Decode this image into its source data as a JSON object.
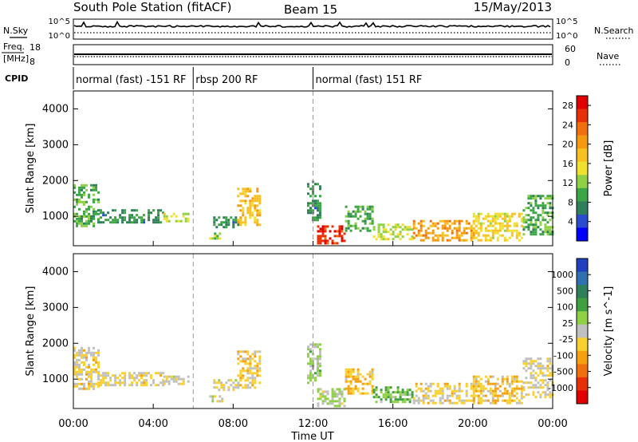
{
  "header": {
    "title": "South Pole Station (fitACF)",
    "beam": "Beam 15",
    "date": "15/May/2013"
  },
  "status_panels": {
    "nsky_label": "N.Sky",
    "nsearch_label": "N.Search",
    "noise_ticks_left": [
      "10^5",
      "10^0"
    ],
    "noise_ticks_right": [
      "10^5",
      "10^0"
    ],
    "freq_label_1": "Freq.",
    "freq_label_2": "[MHz]",
    "freq_ticks": [
      "18",
      "8"
    ],
    "nave_label": "Nave",
    "nave_ticks": [
      "60",
      "0"
    ],
    "cpid_label": "CPID",
    "cpid_segments": [
      {
        "label": "normal (fast) -151 RF",
        "start_hour": 0,
        "end_hour": 6
      },
      {
        "label": "rbsp 200 RF",
        "start_hour": 6,
        "end_hour": 12
      },
      {
        "label": "normal (fast) 151 RF",
        "start_hour": 12,
        "end_hour": 24
      }
    ]
  },
  "chart_data": [
    {
      "type": "heatmap",
      "title": "",
      "xlabel": "Time UT",
      "ylabel": "Slant Range [km]",
      "xlim": [
        0,
        24
      ],
      "ylim": [
        180,
        4500
      ],
      "x_tick_labels": [
        "00:00",
        "04:00",
        "08:00",
        "12:00",
        "16:00",
        "20:00",
        "00:00"
      ],
      "y_ticks": [
        1000,
        2000,
        3000,
        4000
      ],
      "colorbar": {
        "label": "Power [dB]",
        "ticks": [
          "4",
          "8",
          "12",
          "16",
          "20",
          "24",
          "28"
        ],
        "range": [
          0,
          30
        ],
        "colors": [
          "#0000ff",
          "#2a4dd0",
          "#2f7f5a",
          "#3aa645",
          "#8fd046",
          "#f0e030",
          "#f8c020",
          "#f59a10",
          "#f07010",
          "#e83008",
          "#e00000"
        ]
      },
      "echo_regions": [
        {
          "t0": 0.0,
          "t1": 1.2,
          "r0": 750,
          "r1": 1900,
          "value": 10
        },
        {
          "t0": 1.2,
          "t1": 4.5,
          "r0": 800,
          "r1": 1200,
          "value": 8
        },
        {
          "t0": 4.5,
          "t1": 5.8,
          "r0": 850,
          "r1": 1100,
          "value": 14
        },
        {
          "t0": 6.8,
          "t1": 7.4,
          "r0": 400,
          "r1": 550,
          "value": 12
        },
        {
          "t0": 7.0,
          "t1": 8.2,
          "r0": 700,
          "r1": 1000,
          "value": 8
        },
        {
          "t0": 8.2,
          "t1": 9.3,
          "r0": 750,
          "r1": 1800,
          "value": 18
        },
        {
          "t0": 11.7,
          "t1": 12.3,
          "r0": 900,
          "r1": 2000,
          "value": 8
        },
        {
          "t0": 12.2,
          "t1": 13.6,
          "r0": 250,
          "r1": 750,
          "value": 26
        },
        {
          "t0": 13.6,
          "t1": 15.0,
          "r0": 600,
          "r1": 1300,
          "value": 10
        },
        {
          "t0": 15.0,
          "t1": 17.0,
          "r0": 350,
          "r1": 800,
          "value": 14
        },
        {
          "t0": 17.0,
          "t1": 20.0,
          "r0": 300,
          "r1": 900,
          "value": 20
        },
        {
          "t0": 20.0,
          "t1": 22.5,
          "r0": 350,
          "r1": 1100,
          "value": 16
        },
        {
          "t0": 22.5,
          "t1": 24.0,
          "r0": 500,
          "r1": 1600,
          "value": 10
        }
      ]
    },
    {
      "type": "heatmap",
      "title": "",
      "xlabel": "Time UT",
      "ylabel": "Slant Range [km]",
      "xlim": [
        0,
        24
      ],
      "ylim": [
        180,
        4500
      ],
      "x_tick_labels": [
        "00:00",
        "04:00",
        "08:00",
        "12:00",
        "16:00",
        "20:00",
        "00:00"
      ],
      "y_ticks": [
        1000,
        2000,
        3000,
        4000
      ],
      "colorbar": {
        "label": "Velocity [m s^-1]",
        "ticks": [
          "1000",
          "500",
          "100",
          "25",
          "-25",
          "-100",
          "-500",
          "-1000"
        ],
        "range": [
          -1200,
          1200
        ],
        "colors": [
          "#2040c0",
          "#3070b0",
          "#2f7f5a",
          "#40a040",
          "#8fd046",
          "#c0c0c0",
          "#f8d030",
          "#f5a010",
          "#f07010",
          "#e83008",
          "#e00000"
        ]
      },
      "echo_regions": [
        {
          "t0": 0.0,
          "t1": 1.2,
          "r0": 750,
          "r1": 1900,
          "value": -150
        },
        {
          "t0": 1.2,
          "t1": 4.5,
          "r0": 800,
          "r1": 1200,
          "value": -120
        },
        {
          "t0": 4.5,
          "t1": 5.8,
          "r0": 850,
          "r1": 1100,
          "value": -80
        },
        {
          "t0": 6.8,
          "t1": 7.4,
          "r0": 400,
          "r1": 550,
          "value": 50
        },
        {
          "t0": 7.0,
          "t1": 8.2,
          "r0": 700,
          "r1": 1000,
          "value": -100
        },
        {
          "t0": 8.2,
          "t1": 9.3,
          "r0": 750,
          "r1": 1800,
          "value": -200
        },
        {
          "t0": 11.7,
          "t1": 12.3,
          "r0": 900,
          "r1": 2000,
          "value": 150
        },
        {
          "t0": 12.2,
          "t1": 13.6,
          "r0": 250,
          "r1": 750,
          "value": 60
        },
        {
          "t0": 13.6,
          "t1": 15.0,
          "r0": 600,
          "r1": 1300,
          "value": -300
        },
        {
          "t0": 15.0,
          "t1": 17.0,
          "r0": 350,
          "r1": 800,
          "value": 300
        },
        {
          "t0": 17.0,
          "t1": 20.0,
          "r0": 300,
          "r1": 900,
          "value": -150
        },
        {
          "t0": 20.0,
          "t1": 22.5,
          "r0": 350,
          "r1": 1100,
          "value": -250
        },
        {
          "t0": 22.5,
          "t1": 24.0,
          "r0": 500,
          "r1": 1600,
          "value": -120
        }
      ]
    }
  ]
}
